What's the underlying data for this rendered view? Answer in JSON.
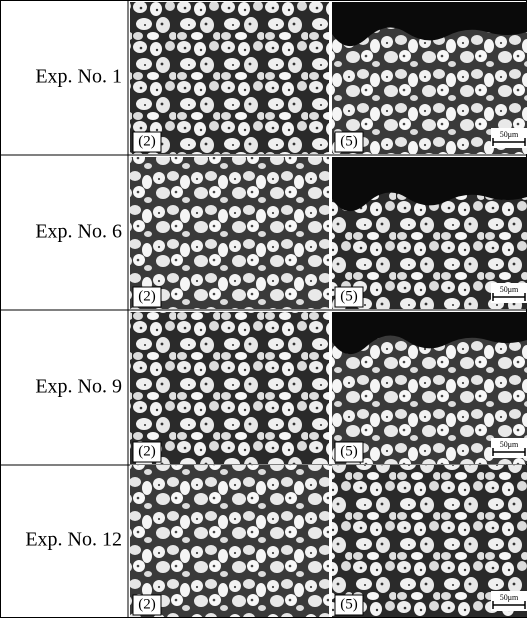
{
  "rows": [
    {
      "label": "Exp. No. 1",
      "images": [
        {
          "tag": "(2)"
        },
        {
          "tag": "(5)",
          "scale": "50μm"
        }
      ]
    },
    {
      "label": "Exp. No. 6",
      "images": [
        {
          "tag": "(2)"
        },
        {
          "tag": "(5)",
          "scale": "50μm"
        }
      ]
    },
    {
      "label": "Exp. No. 9",
      "images": [
        {
          "tag": "(2)"
        },
        {
          "tag": "(5)",
          "scale": "50μm"
        }
      ]
    },
    {
      "label": "Exp. No. 12",
      "images": [
        {
          "tag": "(2)"
        },
        {
          "tag": "(5)",
          "scale": "50μm"
        }
      ]
    }
  ]
}
